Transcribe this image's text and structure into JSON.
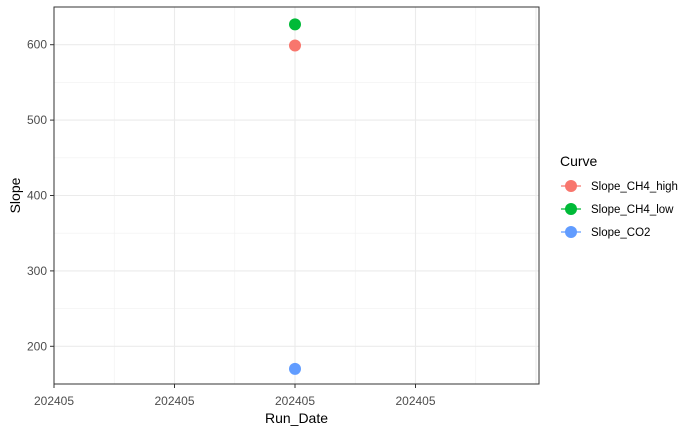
{
  "chart_data": {
    "type": "scatter",
    "xlabel": "Run_Date",
    "ylabel": "Slope",
    "x_tick_labels": [
      "202405",
      "202405",
      "202405",
      "202405"
    ],
    "y_ticks": [
      200,
      300,
      400,
      500,
      600
    ],
    "ylim": [
      150,
      650
    ],
    "grid": true,
    "legend": {
      "title": "Curve",
      "position": "right"
    },
    "series": [
      {
        "name": "Slope_CH4_high",
        "color": "#F8766D",
        "points": [
          {
            "x": "202405",
            "y": 599
          }
        ]
      },
      {
        "name": "Slope_CH4_low",
        "color": "#00BA38",
        "points": [
          {
            "x": "202405",
            "y": 627
          }
        ]
      },
      {
        "name": "Slope_CO2",
        "color": "#619CFF",
        "points": [
          {
            "x": "202405",
            "y": 170
          }
        ]
      }
    ]
  }
}
